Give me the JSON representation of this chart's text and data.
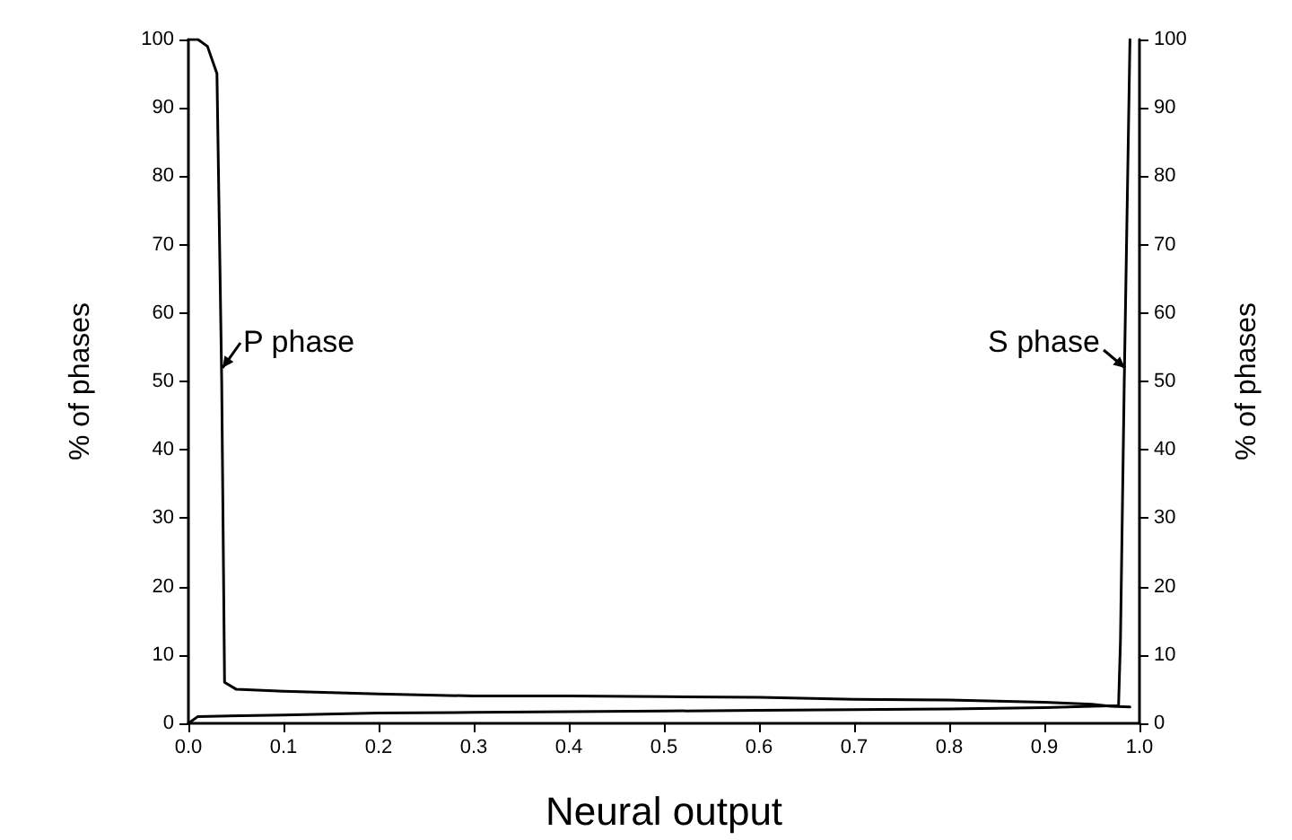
{
  "chart_data": {
    "type": "line",
    "xlabel": "Neural output",
    "ylabel": "% of phases",
    "y2label": "% of phases",
    "xlim": [
      0,
      1
    ],
    "xticks": [
      {
        "value": 0,
        "label": "0.0"
      },
      0.1,
      0.2,
      0.3,
      0.4,
      0.5,
      0.6,
      0.7,
      0.8,
      0.9,
      {
        "value": 1,
        "label": "1.0"
      }
    ],
    "ylim": [
      0,
      100
    ],
    "yticks": [
      0,
      10,
      20,
      30,
      40,
      50,
      60,
      70,
      80,
      90,
      100
    ],
    "y2lim": [
      0,
      100
    ],
    "y2ticks": [
      0,
      10,
      20,
      30,
      40,
      50,
      60,
      70,
      80,
      90,
      100
    ],
    "series": [
      {
        "color": "#000000",
        "x": [
          0,
          0.01,
          0.02,
          0.03,
          0.035,
          0.038,
          0.05,
          0.1,
          0.2,
          0.3,
          0.4,
          0.5,
          0.6,
          0.7,
          0.8,
          0.9,
          0.95,
          0.97,
          0.99
        ],
        "values": [
          100,
          100,
          99,
          95,
          50,
          6,
          5,
          4.7,
          4.3,
          4,
          4,
          3.9,
          3.8,
          3.5,
          3.4,
          3.1,
          2.8,
          2.5,
          2.4
        ]
      },
      {
        "color": "#000000",
        "x": [
          0,
          0.01,
          0.1,
          0.2,
          0.3,
          0.4,
          0.5,
          0.6,
          0.7,
          0.8,
          0.9,
          0.95,
          0.978,
          0.98,
          0.984,
          0.99
        ],
        "values": [
          0,
          1,
          1.2,
          1.5,
          1.6,
          1.7,
          1.8,
          1.9,
          2,
          2.1,
          2.3,
          2.5,
          2.6,
          12,
          50,
          100
        ]
      }
    ],
    "annotations": [
      {
        "text": "P phase",
        "x": 0.035,
        "y": 52
      },
      {
        "text": "S phase",
        "x": 0.984,
        "y": 52
      }
    ],
    "grid": false,
    "marker": "none",
    "line_style": "solid"
  }
}
